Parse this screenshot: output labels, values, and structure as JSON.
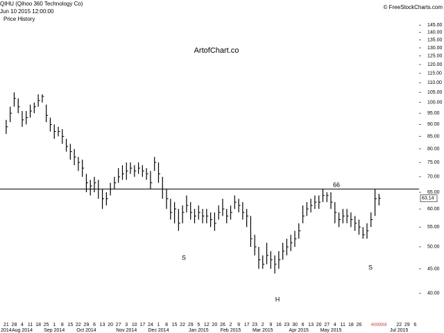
{
  "header": {
    "title": "QIHU (Qihoo 360 Technology Co)",
    "timestamp": "Jun 10 2015 12:00:00",
    "panel": "Price History",
    "source": "© FreeStockCharts.com",
    "watermark": "ArtofChart.co"
  },
  "chart_data": {
    "type": "ohlc",
    "log_scale": true,
    "grid": false,
    "color": "#000000",
    "ylim": [
      35,
      150
    ],
    "yticks": [
      {
        "value": 40,
        "label": "40.00"
      },
      {
        "value": 45,
        "label": "45.00"
      },
      {
        "value": 50,
        "label": "50.00"
      },
      {
        "value": 55,
        "label": "55.00"
      },
      {
        "value": 60,
        "label": "60.00"
      },
      {
        "value": 65,
        "label": "65.00"
      },
      {
        "value": 70,
        "label": "70.00"
      },
      {
        "value": 75,
        "label": "75.00"
      },
      {
        "value": 80,
        "label": "80.00"
      },
      {
        "value": 85,
        "label": "85.00"
      },
      {
        "value": 90,
        "label": "90.00"
      },
      {
        "value": 95,
        "label": "95.00"
      },
      {
        "value": 100,
        "label": "100.00"
      },
      {
        "value": 105,
        "label": "105.00"
      },
      {
        "value": 110,
        "label": "110.00"
      },
      {
        "value": 115,
        "label": "115.00"
      },
      {
        "value": 120,
        "label": "120.00"
      },
      {
        "value": 125,
        "label": "125.00"
      },
      {
        "value": 130,
        "label": "130.00"
      },
      {
        "value": 135,
        "label": "135.00"
      },
      {
        "value": 140,
        "label": "140.00"
      },
      {
        "value": 145,
        "label": "145.00"
      }
    ],
    "categories": [
      "21",
      null,
      "28",
      null,
      "4",
      null,
      "11",
      null,
      "18",
      null,
      "25",
      null,
      "1",
      null,
      "8",
      null,
      "15",
      null,
      "22",
      null,
      "29",
      null,
      "6",
      null,
      "13",
      null,
      "20",
      null,
      "27",
      null,
      "3",
      null,
      "10",
      null,
      "17",
      null,
      "24",
      null,
      "1",
      null,
      "8",
      null,
      "15",
      null,
      "22",
      null,
      "29",
      null,
      "5",
      null,
      "12",
      null,
      "20",
      null,
      "26",
      null,
      "2",
      null,
      "9",
      null,
      "17",
      null,
      "23",
      null,
      "2",
      null,
      "9",
      null,
      "16",
      null,
      "23",
      null,
      "30",
      null,
      "6",
      null,
      "13",
      null,
      "20",
      null,
      "27",
      null,
      "4",
      null,
      "11",
      null,
      "18",
      null,
      "26",
      null,
      null,
      null,
      null,
      "6/10/2015",
      null,
      null,
      null,
      null,
      "22",
      null,
      "29",
      null,
      "6",
      null
    ],
    "months": [
      "2014",
      null,
      null,
      null,
      "Aug 2014",
      null,
      null,
      null,
      null,
      null,
      null,
      null,
      "Sep 2014",
      null,
      null,
      null,
      null,
      null,
      null,
      null,
      "Oct 2014",
      null,
      null,
      null,
      null,
      null,
      null,
      null,
      null,
      null,
      "Nov 2014",
      null,
      null,
      null,
      null,
      null,
      null,
      null,
      "Dec 2014",
      null,
      null,
      null,
      null,
      null,
      null,
      null,
      null,
      null,
      "Jan 2015",
      null,
      null,
      null,
      null,
      null,
      null,
      null,
      "Feb 2015",
      null,
      null,
      null,
      null,
      null,
      null,
      null,
      "Mar 2015",
      null,
      null,
      null,
      null,
      null,
      null,
      null,
      null,
      "Apr 2015",
      null,
      null,
      null,
      null,
      null,
      null,
      null,
      "May 2015",
      null,
      null,
      null,
      null,
      null,
      null,
      null,
      null,
      null,
      null,
      null,
      null,
      null,
      null,
      null,
      null,
      "Jul 2015",
      null,
      null,
      null
    ],
    "high": [
      92,
      98,
      105,
      102,
      96,
      96,
      99,
      100,
      104,
      104,
      99,
      93,
      90,
      89,
      88,
      84,
      82,
      80,
      77,
      76,
      71,
      69,
      70,
      69,
      66,
      65,
      68,
      70,
      73,
      74,
      75,
      75,
      74,
      75,
      74,
      73,
      72,
      77,
      75,
      70,
      66,
      63,
      62,
      60,
      61,
      64,
      62,
      60,
      61,
      60,
      60,
      59,
      59,
      61,
      63,
      60,
      61,
      64,
      63,
      62,
      60,
      58,
      53,
      50,
      48,
      51,
      49,
      48,
      49,
      51,
      52,
      53,
      54,
      56,
      61,
      62,
      63,
      64,
      64,
      66,
      65,
      65,
      62,
      59,
      60,
      60,
      59,
      58,
      57,
      55,
      56,
      59,
      66,
      64.5,
      null,
      null,
      null,
      null,
      null,
      null,
      null,
      null
    ],
    "low": [
      86,
      91,
      98,
      95,
      89,
      90,
      93,
      95,
      98,
      100,
      91,
      87,
      84,
      85,
      82,
      79,
      76,
      74,
      72,
      70,
      65,
      64,
      65,
      63,
      60,
      61,
      64,
      66,
      68,
      69,
      69,
      71,
      70,
      71,
      70,
      69,
      66,
      72,
      68,
      63,
      60,
      57,
      56,
      54,
      56,
      59,
      57,
      56,
      57,
      56,
      56,
      55,
      54,
      57,
      58,
      56,
      57,
      60,
      59,
      57,
      55,
      50,
      48,
      45,
      45,
      46,
      45,
      44,
      45,
      47,
      48,
      49,
      50,
      52,
      56,
      58,
      59,
      60,
      60,
      62,
      62,
      60,
      56,
      55,
      56,
      56,
      55,
      54,
      53,
      52,
      52,
      55,
      58,
      61,
      null,
      null,
      null,
      null,
      null,
      null,
      null,
      null
    ],
    "close": [
      89,
      95,
      102,
      98,
      92,
      93,
      96,
      98,
      101,
      103,
      94,
      90,
      87,
      87,
      85,
      81,
      79,
      77,
      75,
      73,
      68,
      67,
      68,
      66,
      63,
      63,
      66,
      68,
      70,
      71,
      72,
      73,
      72,
      73,
      72,
      71,
      68,
      75,
      71,
      66,
      63,
      59,
      60,
      56,
      59,
      61,
      59,
      58,
      59,
      58,
      58,
      57,
      56,
      59,
      60,
      58,
      59,
      62,
      61,
      59,
      58,
      52,
      50,
      47,
      46,
      48,
      47,
      46,
      47,
      49,
      50,
      51,
      52,
      54,
      58,
      60,
      61,
      62,
      62,
      64,
      64,
      62,
      59,
      57,
      58,
      58,
      57,
      56,
      55,
      53,
      54,
      57,
      63,
      63.14,
      null,
      null,
      null,
      null,
      null,
      null,
      null,
      null
    ],
    "level": 66,
    "annotations": [
      "S",
      "H",
      "S"
    ]
  }
}
